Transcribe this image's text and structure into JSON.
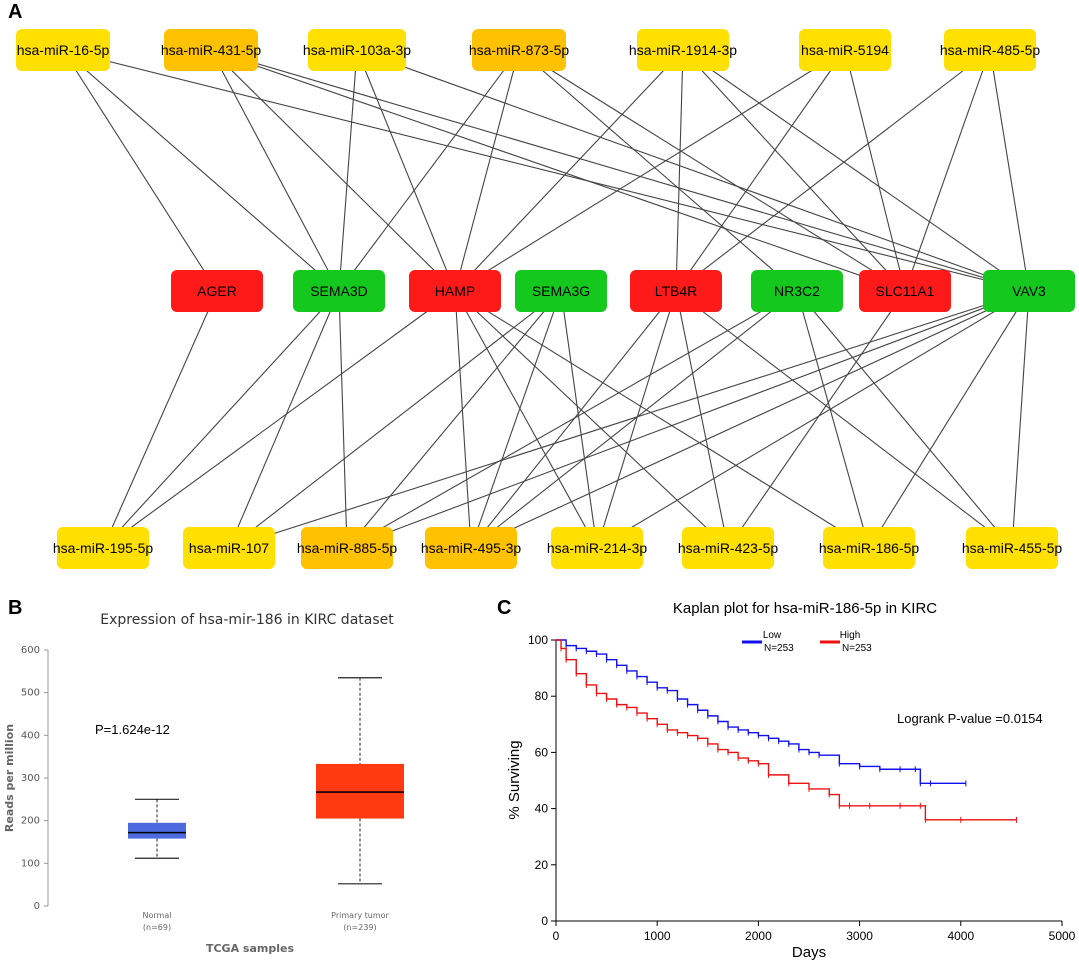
{
  "panels": {
    "a": "A",
    "b": "B",
    "c": "C"
  },
  "colors": {
    "red": "#ff1a1a",
    "green": "#14c81e",
    "yellow": "#ffe000",
    "orange": "#ffc200",
    "edge": "#444444"
  },
  "network": {
    "top_mirnas": [
      {
        "id": "t0",
        "label": "hsa-miR-16-5p",
        "color": "yellow"
      },
      {
        "id": "t1",
        "label": "hsa-miR-431-5p",
        "color": "orange"
      },
      {
        "id": "t2",
        "label": "hsa-miR-103a-3p",
        "color": "yellow"
      },
      {
        "id": "t3",
        "label": "hsa-miR-873-5p",
        "color": "orange"
      },
      {
        "id": "t4",
        "label": "hsa-miR-1914-3p",
        "color": "yellow"
      },
      {
        "id": "t5",
        "label": "hsa-miR-5194",
        "color": "yellow"
      },
      {
        "id": "t6",
        "label": "hsa-miR-485-5p",
        "color": "yellow"
      }
    ],
    "genes": [
      {
        "id": "g0",
        "label": "AGER",
        "color": "red"
      },
      {
        "id": "g1",
        "label": "SEMA3D",
        "color": "green"
      },
      {
        "id": "g2",
        "label": "HAMP",
        "color": "red"
      },
      {
        "id": "g3",
        "label": "SEMA3G",
        "color": "green"
      },
      {
        "id": "g4",
        "label": "LTB4R",
        "color": "red"
      },
      {
        "id": "g5",
        "label": "NR3C2",
        "color": "green"
      },
      {
        "id": "g6",
        "label": "SLC11A1",
        "color": "red"
      },
      {
        "id": "g7",
        "label": "VAV3",
        "color": "green"
      }
    ],
    "bottom_mirnas": [
      {
        "id": "b0",
        "label": "hsa-miR-195-5p",
        "color": "yellow"
      },
      {
        "id": "b1",
        "label": "hsa-miR-107",
        "color": "yellow"
      },
      {
        "id": "b2",
        "label": "hsa-miR-885-5p",
        "color": "orange"
      },
      {
        "id": "b3",
        "label": "hsa-miR-495-3p",
        "color": "orange"
      },
      {
        "id": "b4",
        "label": "hsa-miR-214-3p",
        "color": "yellow"
      },
      {
        "id": "b5",
        "label": "hsa-miR-423-5p",
        "color": "yellow"
      },
      {
        "id": "b6",
        "label": "hsa-miR-186-5p",
        "color": "yellow"
      },
      {
        "id": "b7",
        "label": "hsa-miR-455-5p",
        "color": "yellow"
      }
    ],
    "edges": [
      [
        "t0",
        "g0"
      ],
      [
        "t0",
        "g1"
      ],
      [
        "t0",
        "g7"
      ],
      [
        "t1",
        "g1"
      ],
      [
        "t1",
        "g2"
      ],
      [
        "t1",
        "g6"
      ],
      [
        "t1",
        "g7"
      ],
      [
        "t2",
        "g1"
      ],
      [
        "t2",
        "g2"
      ],
      [
        "t2",
        "g7"
      ],
      [
        "t3",
        "g1"
      ],
      [
        "t3",
        "g2"
      ],
      [
        "t3",
        "g5"
      ],
      [
        "t3",
        "g6"
      ],
      [
        "t4",
        "g2"
      ],
      [
        "t4",
        "g4"
      ],
      [
        "t4",
        "g6"
      ],
      [
        "t4",
        "g7"
      ],
      [
        "t5",
        "g2"
      ],
      [
        "t5",
        "g4"
      ],
      [
        "t5",
        "g6"
      ],
      [
        "t6",
        "g4"
      ],
      [
        "t6",
        "g6"
      ],
      [
        "t6",
        "g7"
      ],
      [
        "g0",
        "b0"
      ],
      [
        "g1",
        "b0"
      ],
      [
        "g1",
        "b1"
      ],
      [
        "g1",
        "b2"
      ],
      [
        "g2",
        "b0"
      ],
      [
        "g2",
        "b3"
      ],
      [
        "g2",
        "b4"
      ],
      [
        "g2",
        "b5"
      ],
      [
        "g2",
        "b6"
      ],
      [
        "g3",
        "b1"
      ],
      [
        "g3",
        "b2"
      ],
      [
        "g3",
        "b3"
      ],
      [
        "g3",
        "b4"
      ],
      [
        "g4",
        "b3"
      ],
      [
        "g4",
        "b4"
      ],
      [
        "g4",
        "b5"
      ],
      [
        "g4",
        "b7"
      ],
      [
        "g5",
        "b2"
      ],
      [
        "g5",
        "b3"
      ],
      [
        "g5",
        "b6"
      ],
      [
        "g5",
        "b7"
      ],
      [
        "g6",
        "b5"
      ],
      [
        "g7",
        "b1"
      ],
      [
        "g7",
        "b2"
      ],
      [
        "g7",
        "b3"
      ],
      [
        "g7",
        "b4"
      ],
      [
        "g7",
        "b6"
      ],
      [
        "g7",
        "b7"
      ]
    ]
  },
  "chart_data": [
    {
      "type": "box",
      "title": "Expression of hsa-mir-186 in KIRC dataset",
      "xlabel": "TCGA samples",
      "ylabel": "Reads per million",
      "ylim": [
        0,
        600
      ],
      "yticks": [
        "0",
        "100",
        "200",
        "300",
        "400",
        "500",
        "600"
      ],
      "annotation": "P=1.624e-12",
      "groups": [
        {
          "name": "Normal",
          "n_label": "(n=69)",
          "min": 112,
          "q1": 158,
          "median": 172,
          "q3": 195,
          "max": 250,
          "color": "#4d6ae0"
        },
        {
          "name": "Primary tumor",
          "n_label": "(n=239)",
          "min": 52,
          "q1": 205,
          "median": 267,
          "q3": 333,
          "max": 535,
          "color": "#ff3a10"
        }
      ]
    },
    {
      "type": "line",
      "title": "Kaplan plot for hsa-miR-186-5p in KIRC",
      "xlabel": "Days",
      "ylabel": "% Surviving",
      "xlim": [
        0,
        5000
      ],
      "ylim": [
        0,
        100
      ],
      "xticks": [
        "0",
        "1000",
        "2000",
        "3000",
        "4000",
        "5000"
      ],
      "yticks": [
        "0",
        "20",
        "40",
        "60",
        "80",
        "100"
      ],
      "annotation": "Logrank P-value =0.0154",
      "series": [
        {
          "name": "Low",
          "n_label": "N=253",
          "color": "#1010ee",
          "x": [
            0,
            100,
            200,
            300,
            400,
            500,
            600,
            700,
            800,
            900,
            1000,
            1100,
            1200,
            1300,
            1400,
            1500,
            1600,
            1700,
            1800,
            1900,
            2000,
            2100,
            2200,
            2300,
            2400,
            2500,
            2600,
            2800,
            3000,
            3200,
            3400,
            3550,
            3600,
            3700,
            4050
          ],
          "y": [
            100,
            98,
            97,
            96,
            95,
            93,
            91,
            89,
            87,
            85,
            83,
            82,
            79,
            77,
            75,
            73,
            71,
            69,
            68,
            67,
            66,
            65,
            64,
            63,
            61,
            60,
            59,
            56,
            55,
            54,
            54,
            54,
            49,
            49,
            49
          ]
        },
        {
          "name": "High",
          "n_label": "N=253",
          "color": "#ee1010",
          "x": [
            0,
            50,
            100,
            200,
            300,
            400,
            500,
            600,
            700,
            800,
            900,
            1000,
            1100,
            1200,
            1300,
            1400,
            1500,
            1600,
            1700,
            1800,
            1900,
            2000,
            2100,
            2300,
            2500,
            2700,
            2800,
            2900,
            3100,
            3400,
            3600,
            3650,
            4000,
            4550
          ],
          "y": [
            100,
            97,
            93,
            88,
            84,
            81,
            79,
            77,
            76,
            74,
            72,
            70,
            68,
            67,
            66,
            65,
            63,
            61,
            60,
            58,
            57,
            56,
            52,
            49,
            47,
            45,
            41,
            41,
            41,
            41,
            41,
            36,
            36,
            36
          ]
        }
      ]
    }
  ]
}
